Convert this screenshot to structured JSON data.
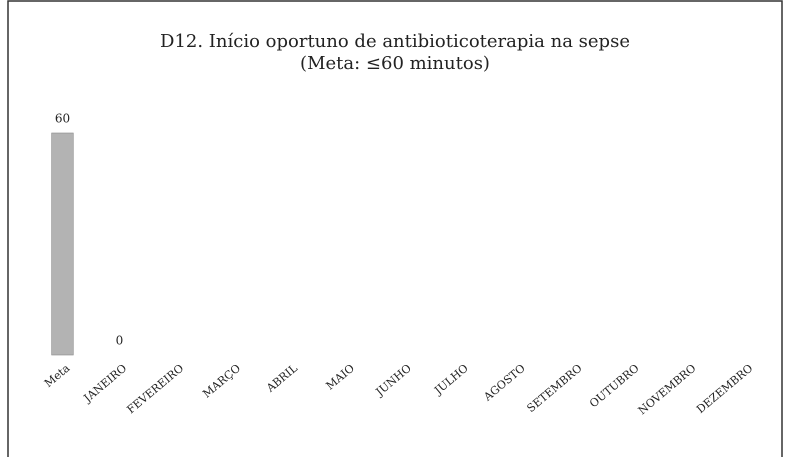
{
  "chart_data": {
    "type": "bar",
    "title": "D12. Início oportuno de antibioticoterapia na sepse",
    "subtitle": "(Meta: ≤60 minutos)",
    "categories": [
      "Meta",
      "JANEIRO",
      "FEVEREIRO",
      "MARÇO",
      "ABRIL",
      "MAIO",
      "JUNHO",
      "JULHO",
      "AGOSTO",
      "SETEMBRO",
      "OUTUBRO",
      "NOVEMBRO",
      "DEZEMBRO"
    ],
    "values": [
      60,
      0,
      null,
      null,
      null,
      null,
      null,
      null,
      null,
      null,
      null,
      null,
      null
    ],
    "color": "#b3b3b3",
    "ylim": [
      0,
      60
    ]
  }
}
